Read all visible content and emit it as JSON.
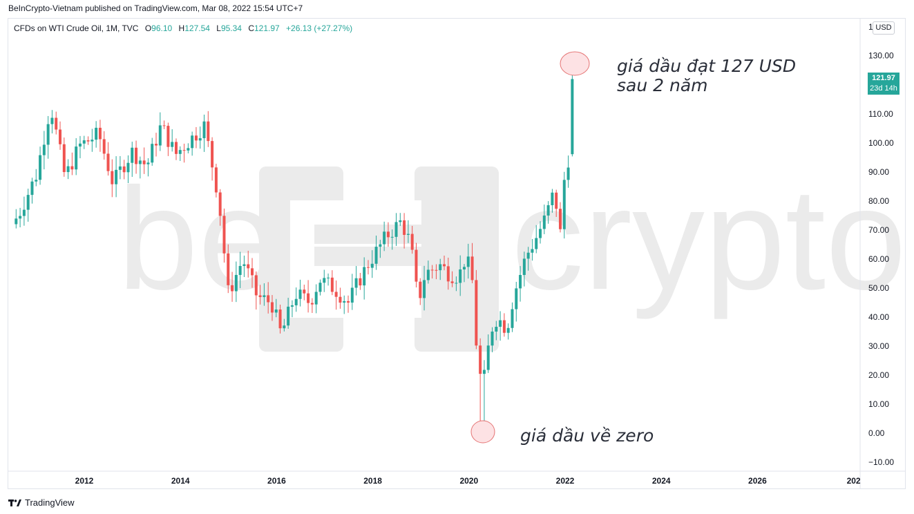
{
  "header": {
    "published": "BeInCrypto-Vietnam published on TradingView.com, Mar 08, 2022 15:54 UTC+7"
  },
  "legend": {
    "symbol": "CFDs on WTI Crude Oil, 1M, TVC",
    "o_label": "O",
    "o": "96.10",
    "h_label": "H",
    "h": "127.54",
    "l_label": "L",
    "l": "95.34",
    "c_label": "C",
    "c": "121.97",
    "change": "+26.13 (+27.27%)"
  },
  "price_scale": {
    "currency": "USD",
    "top_partial": "1",
    "last_price": "121.97",
    "countdown": "23d 14h"
  },
  "annotations": {
    "top_line1": "giá dầu đạt 127 USD",
    "top_line2": "sau 2 năm",
    "bottom": "giá dầu về zero"
  },
  "watermark": {
    "text": "crypto"
  },
  "footer": {
    "brand": "TradingView"
  },
  "colors": {
    "up": "#26a69a",
    "down": "#ef5350",
    "highlight_fill": "#fde2e4",
    "highlight_stroke": "#e57373"
  },
  "chart_data": {
    "type": "candlestick",
    "interval": "1M",
    "title": "CFDs on WTI Crude Oil, 1M, TVC",
    "xlabel": "",
    "ylabel": "",
    "ylim": [
      -13,
      144
    ],
    "y_ticks": [
      "130.00",
      "120.00",
      "110.00",
      "100.00",
      "90.00",
      "80.00",
      "70.00",
      "60.00",
      "50.00",
      "40.00",
      "30.00",
      "20.00",
      "10.00",
      "0.00",
      "−10.00"
    ],
    "x_ticks": [
      "2012",
      "2014",
      "2016",
      "2018",
      "2020",
      "2022",
      "2024",
      "2026",
      "202"
    ],
    "close_levels": [
      [
        2010.6,
        74
      ],
      [
        2011.0,
        89
      ],
      [
        2011.3,
        113
      ],
      [
        2011.6,
        88
      ],
      [
        2011.9,
        99
      ],
      [
        2012.3,
        103
      ],
      [
        2012.6,
        86
      ],
      [
        2012.8,
        92
      ],
      [
        2013.0,
        97
      ],
      [
        2013.3,
        92
      ],
      [
        2013.6,
        106
      ],
      [
        2013.9,
        96
      ],
      [
        2014.2,
        101
      ],
      [
        2014.5,
        106
      ],
      [
        2014.8,
        81
      ],
      [
        2015.0,
        48
      ],
      [
        2015.3,
        60
      ],
      [
        2015.6,
        47
      ],
      [
        2015.9,
        45
      ],
      [
        2016.1,
        34
      ],
      [
        2016.4,
        48
      ],
      [
        2016.7,
        45
      ],
      [
        2016.9,
        53
      ],
      [
        2017.2,
        50
      ],
      [
        2017.5,
        45
      ],
      [
        2017.7,
        52
      ],
      [
        2017.9,
        58
      ],
      [
        2018.3,
        68
      ],
      [
        2018.6,
        73
      ],
      [
        2018.8,
        65
      ],
      [
        2018.95,
        45
      ],
      [
        2019.1,
        55
      ],
      [
        2019.4,
        58
      ],
      [
        2019.6,
        55
      ],
      [
        2019.8,
        54
      ],
      [
        2019.95,
        61
      ],
      [
        2020.1,
        51
      ],
      [
        2020.2,
        20
      ],
      [
        2020.35,
        19
      ],
      [
        2020.45,
        35
      ],
      [
        2020.6,
        40
      ],
      [
        2020.8,
        36
      ],
      [
        2020.95,
        48
      ],
      [
        2021.2,
        61
      ],
      [
        2021.4,
        67
      ],
      [
        2021.6,
        74
      ],
      [
        2021.8,
        84
      ],
      [
        2021.9,
        66
      ],
      [
        2022.0,
        88
      ],
      [
        2022.1,
        96
      ],
      [
        2022.18,
        122
      ]
    ]
  }
}
